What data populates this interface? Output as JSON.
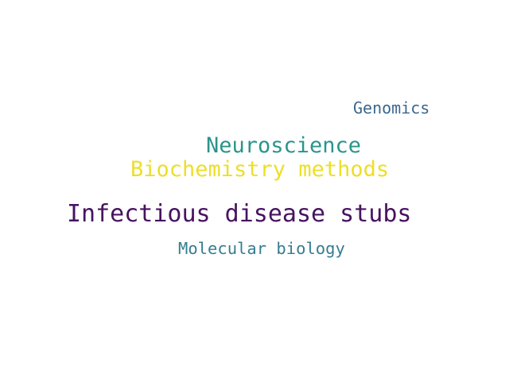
{
  "words": [
    {
      "text": "Genomics",
      "color": "#3b678e"
    },
    {
      "text": "Neuroscience",
      "color": "#2a948c"
    },
    {
      "text": "Biochemistry methods",
      "color": "#ecdf28"
    },
    {
      "text": "Infectious disease stubs",
      "color": "#471360"
    },
    {
      "text": "Molecular biology",
      "color": "#357d92"
    }
  ]
}
